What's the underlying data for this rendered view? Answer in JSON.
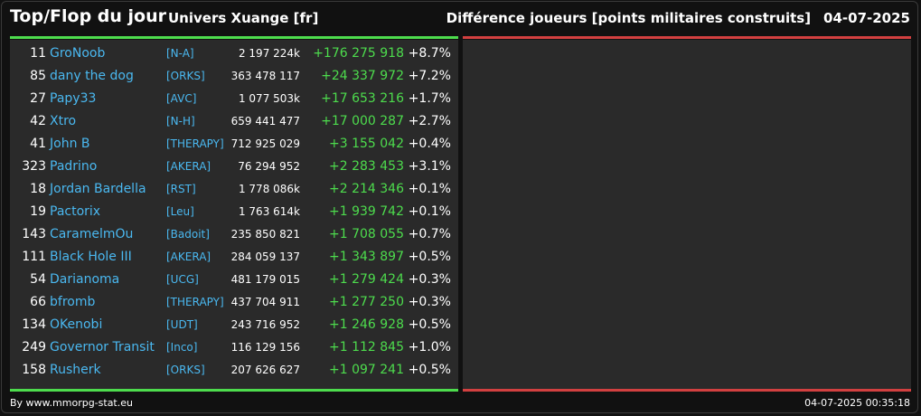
{
  "header": {
    "title": "Top/Flop du jour",
    "universe": "Univers Xuange [fr]",
    "metric": "Différence joueurs [points militaires construits]",
    "date": "04-07-2025"
  },
  "colors": {
    "top_bar": "#4ddc4d",
    "flop_bar": "#d24040",
    "player_name": "#4ab8f0",
    "positive_diff": "#4ddc4d"
  },
  "top_rows": [
    {
      "rank": "11",
      "name": "GroNoob",
      "alliance": "[N-A]",
      "points": "2 197 224k",
      "diff": "+176 275 918",
      "pct": "+8.7%"
    },
    {
      "rank": "85",
      "name": "dany the dog",
      "alliance": "[ORKS]",
      "points": "363 478 117",
      "diff": "+24 337 972",
      "pct": "+7.2%"
    },
    {
      "rank": "27",
      "name": "Papy33",
      "alliance": "[AVC]",
      "points": "1 077 503k",
      "diff": "+17 653 216",
      "pct": "+1.7%"
    },
    {
      "rank": "42",
      "name": "Xtro",
      "alliance": "[N-H]",
      "points": "659 441 477",
      "diff": "+17 000 287",
      "pct": "+2.7%"
    },
    {
      "rank": "41",
      "name": "John B",
      "alliance": "[THERAPY]",
      "points": "712 925 029",
      "diff": "+3 155 042",
      "pct": "+0.4%"
    },
    {
      "rank": "323",
      "name": "Padrino",
      "alliance": "[AKERA]",
      "points": "76 294 952",
      "diff": "+2 283 453",
      "pct": "+3.1%"
    },
    {
      "rank": "18",
      "name": "Jordan Bardella",
      "alliance": "[RST]",
      "points": "1 778 086k",
      "diff": "+2 214 346",
      "pct": "+0.1%"
    },
    {
      "rank": "19",
      "name": "Pactorix",
      "alliance": "[Leu]",
      "points": "1 763 614k",
      "diff": "+1 939 742",
      "pct": "+0.1%"
    },
    {
      "rank": "143",
      "name": "CaramelmOu",
      "alliance": "[Badoit]",
      "points": "235 850 821",
      "diff": "+1 708 055",
      "pct": "+0.7%"
    },
    {
      "rank": "111",
      "name": "Black Hole III",
      "alliance": "[AKERA]",
      "points": "284 059 137",
      "diff": "+1 343 897",
      "pct": "+0.5%"
    },
    {
      "rank": "54",
      "name": "Darianoma",
      "alliance": "[UCG]",
      "points": "481 179 015",
      "diff": "+1 279 424",
      "pct": "+0.3%"
    },
    {
      "rank": "66",
      "name": "bfromb",
      "alliance": "[THERAPY]",
      "points": "437 704 911",
      "diff": "+1 277 250",
      "pct": "+0.3%"
    },
    {
      "rank": "134",
      "name": "OKenobi",
      "alliance": "[UDT]",
      "points": "243 716 952",
      "diff": "+1 246 928",
      "pct": "+0.5%"
    },
    {
      "rank": "249",
      "name": "Governor Transit",
      "alliance": "[Inco]",
      "points": "116 129 156",
      "diff": "+1 112 845",
      "pct": "+1.0%"
    },
    {
      "rank": "158",
      "name": "Rusherk",
      "alliance": "[ORKS]",
      "points": "207 626 627",
      "diff": "+1 097 241",
      "pct": "+0.5%"
    }
  ],
  "footer": {
    "credit": "By www.mmorpg-stat.eu",
    "timestamp": "04-07-2025 00:35:18"
  }
}
